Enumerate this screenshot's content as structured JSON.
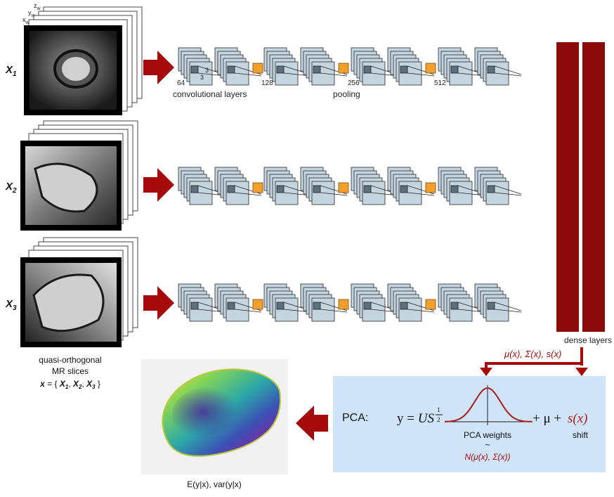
{
  "inputs": [
    {
      "label": "X",
      "sub": "1"
    },
    {
      "label": "X",
      "sub": "2"
    },
    {
      "label": "X",
      "sub": "3"
    }
  ],
  "axes": {
    "z": "z",
    "y": "y",
    "x": "x",
    "sub": "w"
  },
  "network": {
    "filters": [
      "64",
      "128",
      "256",
      "512"
    ],
    "kernel_h": "3",
    "kernel_w": "3",
    "conv_label": "convolutional layers",
    "pool_label": "pooling",
    "dense_label": "dense layers"
  },
  "caption": {
    "line1": "quasi-orthogonal",
    "line2": "MR slices",
    "set_prefix": "x",
    "set_eq": " = { ",
    "set_items": [
      {
        "l": "X",
        "s": "1"
      },
      {
        "l": "X",
        "s": "2"
      },
      {
        "l": "X",
        "s": "3"
      }
    ],
    "set_close": " }"
  },
  "dense_outputs": "μ(x), Σ(x), s(x)",
  "pca": {
    "label": "PCA:",
    "eq_lhs": "y = ",
    "eq_us": "US",
    "exp_num": "1",
    "exp_den": "2",
    "eq_mu": "+ μ +",
    "eq_s": "s(x)",
    "weights": "PCA weights",
    "tilde": "~",
    "dist": "N(μ(x), Σ(x))",
    "shift": "shift"
  },
  "output_label": "E(y|x), var(y|x)",
  "colors": {
    "accent_red": "#a40c0c",
    "dense_red": "#8c0a0a",
    "pca_bg": "#cfe4f8",
    "feature_map": "#c5d5e0",
    "pool": "#f2a02c",
    "kernel": "#5c6f7c"
  }
}
